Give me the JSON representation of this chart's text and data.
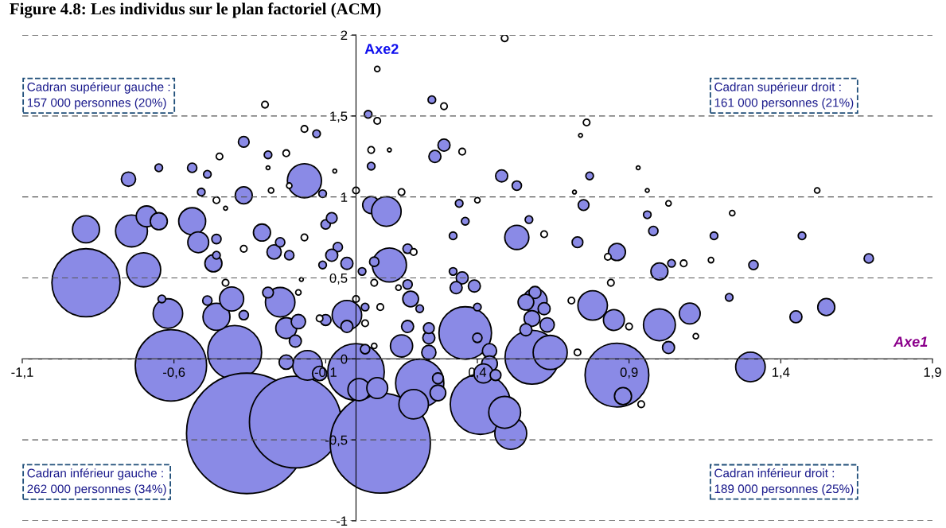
{
  "chart_data": {
    "type": "bubble",
    "title": "Figure 4.8: Les individus sur le plan factoriel (ACM)",
    "xlabel": "Axe1",
    "ylabel": "Axe2",
    "xlim": [
      -1.1,
      1.9
    ],
    "ylim": [
      -1,
      2
    ],
    "xticks": [
      {
        "value": -1.1,
        "label": "-1,1"
      },
      {
        "value": -0.6,
        "label": "-0,6"
      },
      {
        "value": -0.1,
        "label": "-0,1"
      },
      {
        "value": 0.4,
        "label": "0,4"
      },
      {
        "value": 0.9,
        "label": "0,9"
      },
      {
        "value": 1.4,
        "label": "1,4"
      },
      {
        "value": 1.9,
        "label": "1,9"
      }
    ],
    "yticks": [
      -1,
      {
        "value": -0.5,
        "label": "-0,5"
      },
      0,
      {
        "value": 0.5,
        "label": "0,5"
      },
      1,
      {
        "value": 1.5,
        "label": "1,5"
      },
      2
    ],
    "grid": "y",
    "legend": false,
    "marker": "circle",
    "annotations": [
      "Cadran supérieur gauche :\n157 000 personnes (20%)",
      "Cadran supérieur droit :\n161 000 personnes (21%)",
      "Cadran inférieur gauche :\n262 000 personnes (34%)",
      "Cadran inférieur droit :\n189 000 personnes (25%)"
    ],
    "series": [
      {
        "color": "#8a8ae6",
        "x": [
          -0.89,
          -0.61,
          -0.4,
          -0.36,
          -0.2,
          0.08,
          0.0,
          0.36,
          0.58,
          0.86,
          0.41,
          0.21,
          1.3,
          -0.16,
          -0.7,
          -0.74,
          -0.89,
          -0.69,
          -0.65,
          -0.62,
          -0.54,
          -0.52,
          -0.46,
          -0.47,
          -0.41,
          -0.25,
          -0.23,
          -0.31,
          -0.17,
          -0.37,
          -0.03,
          0.11,
          0.05,
          0.1,
          0.53,
          0.59,
          0.64,
          0.51,
          0.49,
          0.78,
          0.85,
          1.0,
          1.0,
          1.1,
          1.03,
          0.86,
          0.88,
          1.55,
          1.45,
          1.69,
          1.47,
          1.31,
          1.18,
          1.23,
          1.04,
          0.96,
          0.98,
          0.73,
          0.75,
          0.77,
          0.53,
          0.48,
          0.57,
          0.26,
          0.29,
          0.25,
          0.05,
          0.04,
          -0.11,
          -0.13,
          -0.29,
          -0.54,
          -0.65,
          -0.49,
          -0.75,
          -0.51,
          -0.37,
          -0.1,
          -0.08,
          -0.06,
          -0.08,
          -0.03,
          -0.11,
          -0.46,
          -0.46,
          -0.27,
          -0.22,
          -0.25,
          0.06,
          0.02,
          0.17,
          0.34,
          0.36,
          0.32,
          0.32,
          0.35,
          0.39,
          0.33,
          0.18,
          0.17,
          0.21,
          0.59,
          0.56,
          0.62,
          0.58,
          0.63,
          0.56,
          0.44,
          0.44,
          0.42,
          0.46,
          0.4,
          0.4,
          0.27,
          0.27,
          0.15,
          0.24,
          0.24,
          0.17,
          0.24,
          -0.19,
          -0.29,
          -0.12,
          -0.03,
          0.03,
          0.01,
          0.07,
          0.19,
          -0.2,
          -0.23,
          -0.1,
          -0.64,
          -0.37,
          -0.49,
          0.03
        ],
        "values": [
          0.47,
          -0.04,
          0.04,
          -0.46,
          -0.39,
          -0.52,
          -0.08,
          0.16,
          0.01,
          -0.1,
          -0.28,
          -0.15,
          -0.05,
          -0.04,
          0.55,
          0.79,
          0.8,
          0.88,
          0.85,
          0.28,
          0.85,
          0.72,
          0.26,
          0.59,
          0.37,
          0.35,
          0.19,
          0.78,
          1.1,
          1.01,
          0.27,
          0.58,
          0.95,
          0.91,
          0.75,
          0.36,
          0.04,
          -0.46,
          -0.33,
          0.33,
          0.24,
          0.21,
          0.54,
          0.28,
          0.07,
          0.66,
          -0.23,
          0.32,
          0.26,
          0.62,
          0.76,
          0.58,
          0.76,
          0.38,
          0.59,
          0.89,
          0.79,
          0.72,
          0.95,
          1.13,
          1.07,
          1.13,
          0.86,
          1.25,
          1.32,
          1.6,
          1.19,
          1.51,
          1.02,
          1.39,
          1.26,
          1.18,
          1.18,
          1.14,
          1.11,
          1.03,
          1.34,
          0.83,
          0.87,
          0.69,
          0.64,
          0.59,
          0.58,
          0.74,
          0.64,
          0.66,
          0.64,
          0.72,
          0.6,
          0.54,
          0.68,
          0.96,
          0.85,
          0.76,
          0.54,
          0.5,
          0.45,
          0.44,
          0.37,
          0.46,
          0.31,
          0.41,
          0.35,
          0.31,
          0.25,
          0.21,
          0.18,
          0.05,
          -0.03,
          -0.09,
          -0.1,
          0.13,
          0.32,
          -0.21,
          -0.12,
          0.08,
          0.04,
          0.13,
          0.2,
          0.19,
          0.23,
          0.41,
          -0.09,
          0.2,
          0.32,
          -0.19,
          -0.18,
          -0.28,
          0.11,
          -0.02,
          0.24,
          0.37,
          0.27,
          0.36,
          0.06
        ],
        "sizes": [
          0.32,
          0.35,
          0.2,
          1.0,
          0.58,
          0.69,
          0.22,
          0.19,
          0.2,
          0.28,
          0.25,
          0.16,
          0.06,
          0.06,
          0.08,
          0.07,
          0.05,
          0.03,
          0.02,
          0.06,
          0.05,
          0.03,
          0.05,
          0.02,
          0.04,
          0.06,
          0.03,
          0.02,
          0.08,
          0.02,
          0.06,
          0.08,
          0.02,
          0.06,
          0.04,
          0.04,
          0.08,
          0.07,
          0.07,
          0.06,
          0.03,
          0.07,
          0.02,
          0.03,
          0.01,
          0.02,
          0.02,
          0.02,
          0.01,
          0.006,
          0.004,
          0.006,
          0.004,
          0.004,
          0.004,
          0.004,
          0.006,
          0.008,
          0.008,
          0.004,
          0.006,
          0.01,
          0.004,
          0.01,
          0.01,
          0.004,
          0.004,
          0.004,
          0.004,
          0.004,
          0.004,
          0.006,
          0.004,
          0.004,
          0.014,
          0.004,
          0.008,
          0.006,
          0.008,
          0.006,
          0.01,
          0.01,
          0.004,
          0.006,
          0.004,
          0.014,
          0.006,
          0.006,
          0.006,
          0.004,
          0.006,
          0.004,
          0.004,
          0.004,
          0.004,
          0.01,
          0.01,
          0.01,
          0.017,
          0.006,
          0.004,
          0.01,
          0.017,
          0.01,
          0.017,
          0.014,
          0.01,
          0.014,
          0.017,
          0.025,
          0.008,
          0.006,
          0.004,
          0.017,
          0.008,
          0.034,
          0.014,
          0.01,
          0.01,
          0.008,
          0.014,
          0.008,
          0.014,
          0.01,
          0.004,
          0.034,
          0.03,
          0.06,
          0.01,
          0.014,
          0.008,
          0.004,
          0.006,
          0.006,
          0.006
        ]
      },
      {
        "color": "#ffffff",
        "x": [
          0.49,
          0.07,
          -0.3,
          0.07,
          0.29,
          0.76,
          0.74,
          -0.17,
          0.05,
          0.35,
          0.11,
          -0.23,
          -0.45,
          -0.29,
          -0.07,
          0.0,
          -0.22,
          -0.28,
          -0.46,
          -0.43,
          0.4,
          0.72,
          0.96,
          0.93,
          1.24,
          1.52,
          1.03,
          0.15,
          -0.17,
          -0.37,
          0.19,
          0.62,
          0.83,
          0.84,
          1.08,
          1.17,
          0.71,
          0.9,
          0.73,
          0.94,
          1.12,
          0.06,
          0.08,
          0.0,
          0.03,
          0.06,
          -0.12,
          -0.19,
          -0.18,
          -0.43,
          0.14
        ],
        "values": [
          1.98,
          1.79,
          1.57,
          1.47,
          1.56,
          1.46,
          1.38,
          1.42,
          1.29,
          1.28,
          1.29,
          1.27,
          1.25,
          1.18,
          1.16,
          1.04,
          1.07,
          1.04,
          0.98,
          0.93,
          0.98,
          1.03,
          1.04,
          1.18,
          0.9,
          1.04,
          0.96,
          1.03,
          0.75,
          0.68,
          0.66,
          0.77,
          0.63,
          0.47,
          0.59,
          0.61,
          0.36,
          0.2,
          0.04,
          -0.28,
          0.14,
          0.47,
          0.32,
          0.37,
          0.22,
          0.08,
          0.25,
          0.41,
          0.49,
          0.47,
          0.44
        ],
        "sizes": [
          0.003,
          0.002,
          0.003,
          0.003,
          0.003,
          0.003,
          0.001,
          0.003,
          0.003,
          0.003,
          0.001,
          0.003,
          0.003,
          0.001,
          0.001,
          0.003,
          0.002,
          0.002,
          0.003,
          0.001,
          0.002,
          0.001,
          0.001,
          0.001,
          0.002,
          0.002,
          0.002,
          0.003,
          0.003,
          0.003,
          0.003,
          0.003,
          0.003,
          0.003,
          0.003,
          0.002,
          0.003,
          0.003,
          0.003,
          0.003,
          0.002,
          0.003,
          0.003,
          0.003,
          0.003,
          0.002,
          0.003,
          0.002,
          0.001,
          0.003,
          0.002
        ]
      }
    ]
  }
}
